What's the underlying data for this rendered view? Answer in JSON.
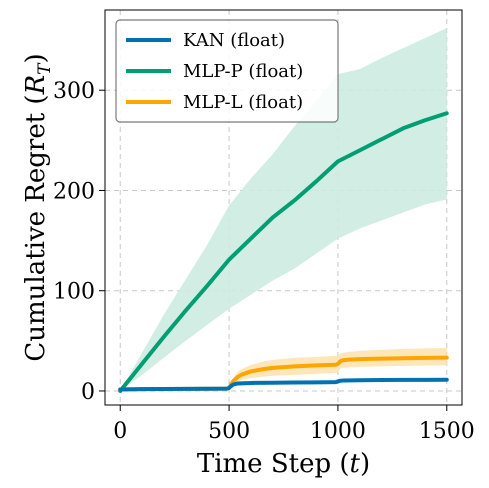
{
  "chart_data": {
    "type": "line",
    "title": "",
    "xlabel": "Time Step (",
    "xlabel_var": "t",
    "xlabel_end": ")",
    "ylabel": "Cumulative Regret (",
    "ylabel_var": "R",
    "ylabel_sub": "T",
    "ylabel_end": ")",
    "xlim": [
      -70,
      1570
    ],
    "ylim": [
      -14,
      380
    ],
    "xticks": [
      0,
      500,
      1000,
      1500
    ],
    "xtick_labels": [
      "0",
      "500",
      "1000",
      "1500"
    ],
    "yticks": [
      0,
      100,
      200,
      300
    ],
    "ytick_labels": [
      "0",
      "100",
      "200",
      "300"
    ],
    "grid": true,
    "legend_position": "top-left",
    "series": [
      {
        "name": "KAN (float)",
        "color": "#0072b2",
        "band_color": "#fde4b2",
        "x": [
          0,
          100,
          200,
          300,
          400,
          490,
          500,
          510,
          520,
          540,
          600,
          700,
          800,
          900,
          990,
          1000,
          1010,
          1030,
          1100,
          1200,
          1300,
          1400,
          1500
        ],
        "values": [
          1.5,
          1.8,
          2,
          2.1,
          2.2,
          2.3,
          3,
          5,
          6.5,
          7.5,
          8,
          8.2,
          8.4,
          8.6,
          8.8,
          9.5,
          10.2,
          10.5,
          10.7,
          10.9,
          11,
          11.1,
          11.2
        ],
        "lower": [
          1.5,
          1.8,
          2,
          2.1,
          2.2,
          2.3,
          3,
          4.5,
          5.5,
          6.5,
          7,
          7.2,
          7.3,
          7.5,
          7.6,
          8.2,
          9,
          9.2,
          9.3,
          9.4,
          9.5,
          9.6,
          9.7
        ],
        "upper": [
          1.5,
          1.8,
          2,
          2.1,
          2.2,
          2.3,
          3,
          5.5,
          7.5,
          8.5,
          9,
          9.2,
          9.4,
          9.7,
          10,
          10.8,
          11.4,
          11.8,
          12,
          12.3,
          12.5,
          12.6,
          12.7
        ]
      },
      {
        "name": "MLP-P (float)",
        "color": "#009e73",
        "band_color": "#cdebe1",
        "x": [
          0,
          100,
          200,
          300,
          400,
          500,
          600,
          700,
          800,
          900,
          1000,
          1100,
          1200,
          1300,
          1400,
          1500
        ],
        "values": [
          0,
          27,
          54,
          80,
          105,
          131,
          152,
          173,
          190,
          209,
          229,
          240,
          251,
          262,
          270,
          277
        ],
        "lower": [
          0,
          16,
          33,
          50,
          66,
          82,
          96,
          110,
          122,
          137,
          152,
          162,
          170,
          178,
          186,
          191
        ],
        "upper": [
          0,
          38,
          76,
          111,
          146,
          185,
          212,
          236,
          264,
          290,
          316,
          321,
          332,
          342,
          352,
          362
        ]
      },
      {
        "name": "MLP-L (float)",
        "color": "#ffa500",
        "band_color": "#fde4b2",
        "x": [
          0,
          100,
          200,
          300,
          400,
          490,
          500,
          510,
          520,
          540,
          560,
          600,
          650,
          700,
          800,
          900,
          990,
          1000,
          1010,
          1020,
          1050,
          1100,
          1200,
          1300,
          1400,
          1500
        ],
        "values": [
          1.5,
          1.8,
          2,
          2.1,
          2.2,
          2.3,
          3,
          7,
          10,
          14,
          16.5,
          19.5,
          21.5,
          23,
          24.5,
          25.5,
          26.2,
          27,
          29.5,
          30.5,
          31.3,
          31.7,
          32.2,
          32.6,
          33,
          33.2
        ],
        "lower": [
          1.5,
          1.8,
          2,
          2.1,
          2.2,
          2.3,
          3,
          5,
          7,
          9,
          11,
          13,
          14,
          15,
          16,
          17,
          18,
          19,
          22,
          23,
          23.5,
          24,
          24.5,
          25,
          25.3,
          25.5
        ],
        "upper": [
          1.5,
          1.8,
          2,
          2.1,
          2.2,
          2.3,
          3,
          9,
          13,
          19,
          22,
          26,
          29,
          31,
          33,
          34,
          35,
          35.5,
          37,
          38,
          39,
          40,
          41,
          42,
          42.5,
          43
        ]
      }
    ]
  }
}
